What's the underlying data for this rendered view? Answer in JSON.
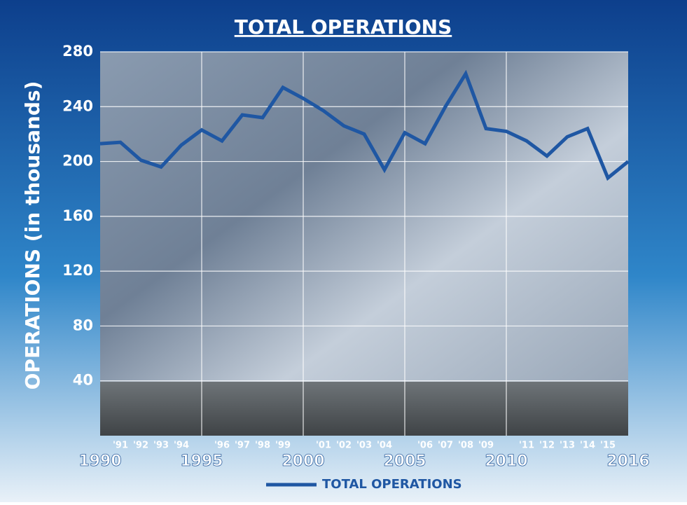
{
  "chart_data": {
    "type": "line",
    "title": "TOTAL OPERATIONS",
    "y_label": "OPERATIONS (in thousands)",
    "x": [
      1990,
      1991,
      1992,
      1993,
      1994,
      1995,
      1996,
      1997,
      1998,
      1999,
      2000,
      2001,
      2002,
      2003,
      2004,
      2005,
      2006,
      2007,
      2008,
      2009,
      2010,
      2011,
      2012,
      2013,
      2014,
      2015,
      2016
    ],
    "series": [
      {
        "name": "TOTAL OPERATIONS",
        "color": "#1f57a3",
        "values": [
          213,
          214,
          201,
          196,
          212,
          223,
          215,
          234,
          232,
          254,
          246,
          237,
          226,
          220,
          194,
          221,
          213,
          240,
          264,
          224,
          222,
          215,
          204,
          218,
          224,
          188,
          200
        ]
      }
    ],
    "xlim": [
      1990,
      2016
    ],
    "xticks": [
      1990,
      {
        "value": 1991,
        "label": "'91"
      },
      {
        "value": 1992,
        "label": "'92"
      },
      {
        "value": 1993,
        "label": "'93"
      },
      {
        "value": 1994,
        "label": "'94"
      },
      1995,
      {
        "value": 1996,
        "label": "'96"
      },
      {
        "value": 1997,
        "label": "'97"
      },
      {
        "value": 1998,
        "label": "'98"
      },
      {
        "value": 1999,
        "label": "'99"
      },
      2000,
      {
        "value": 2001,
        "label": "'01"
      },
      {
        "value": 2002,
        "label": "'02"
      },
      {
        "value": 2003,
        "label": "'03"
      },
      {
        "value": 2004,
        "label": "'04"
      },
      2005,
      {
        "value": 2006,
        "label": "'06"
      },
      {
        "value": 2007,
        "label": "'07"
      },
      {
        "value": 2008,
        "label": "'08"
      },
      {
        "value": 2009,
        "label": "'09"
      },
      2010,
      {
        "value": 2011,
        "label": "'11"
      },
      {
        "value": 2012,
        "label": "'12"
      },
      {
        "value": 2013,
        "label": "'13"
      },
      {
        "value": 2014,
        "label": "'14"
      },
      {
        "value": 2015,
        "label": "'15"
      },
      2016
    ],
    "ylim": [
      0,
      280
    ],
    "yticks": [
      40,
      80,
      120,
      160,
      200,
      240,
      280
    ],
    "grid": true,
    "legend": "bottom"
  }
}
